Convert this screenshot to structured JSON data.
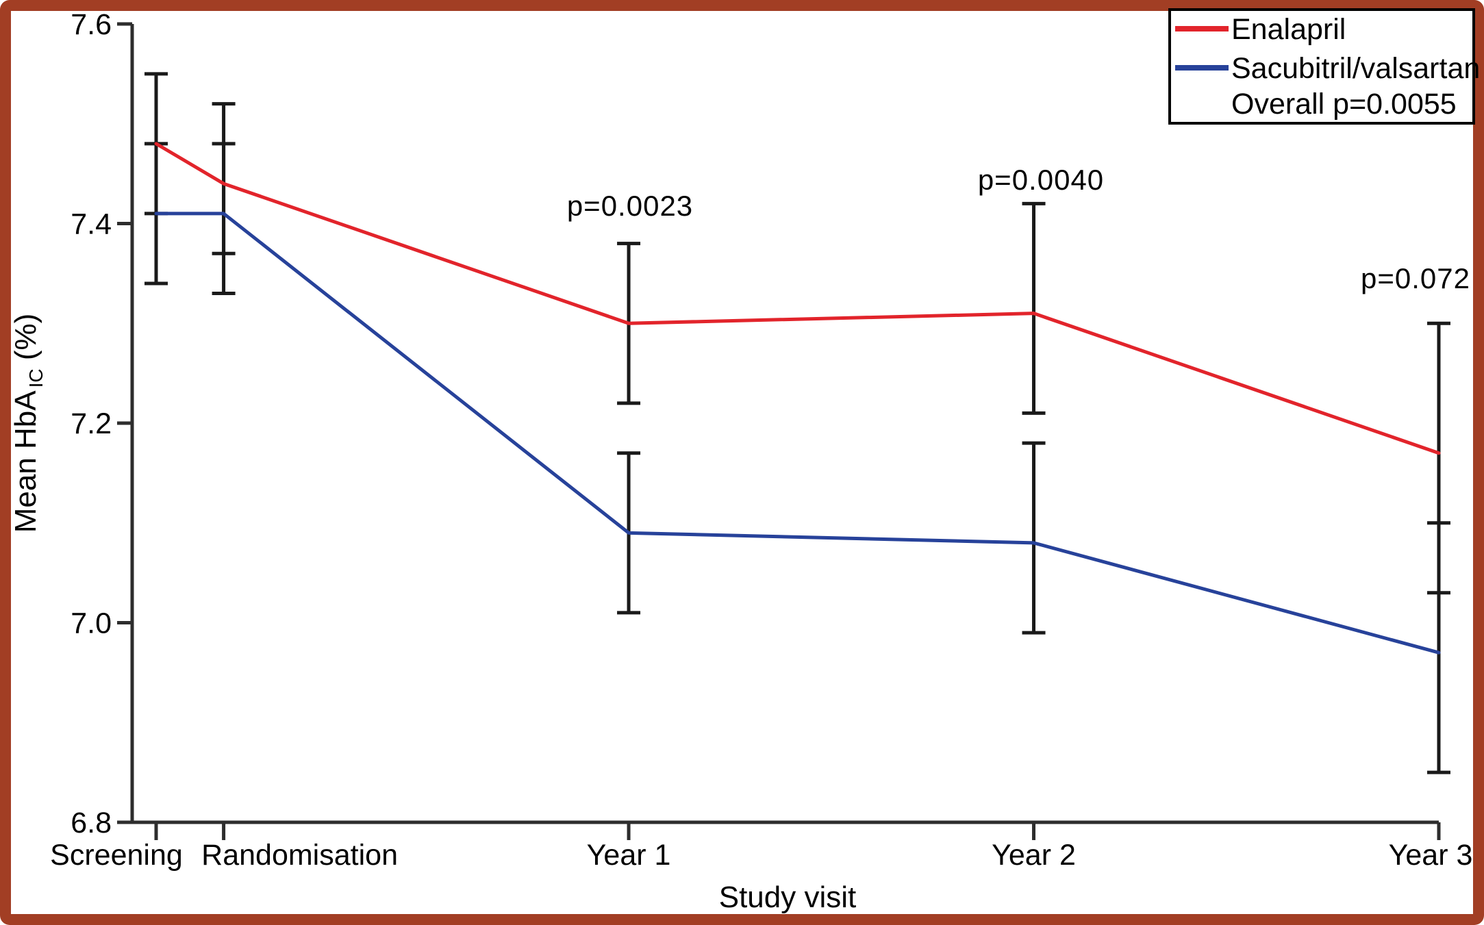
{
  "frame": {
    "color": "#a23e24",
    "background": "#ffffff"
  },
  "chart_data": {
    "type": "line",
    "title": "",
    "xlabel": "Study visit",
    "ylabel": {
      "main": "Mean HbA",
      "sub": "IC",
      "unit": " (%)"
    },
    "ylim": [
      6.8,
      7.6
    ],
    "grid": false,
    "yticks": [
      {
        "label": "7.6",
        "value": 7.6
      },
      {
        "label": "7.4",
        "value": 7.4
      },
      {
        "label": "7.2",
        "value": 7.2
      },
      {
        "label": "7.0",
        "value": 7.0
      },
      {
        "label": "6.8",
        "value": 6.8
      }
    ],
    "categories": [
      {
        "label": "Screening",
        "month": -2
      },
      {
        "label": "Randomisation",
        "month": 0
      },
      {
        "label": "Year 1",
        "month": 12
      },
      {
        "label": "Year 2",
        "month": 24
      },
      {
        "label": "Year 3",
        "month": 36
      }
    ],
    "series": [
      {
        "name": "Enalapril",
        "color": "#e2242b",
        "values": [
          7.48,
          7.44,
          7.3,
          7.31,
          7.17
        ],
        "ci_low": [
          7.41,
          7.37,
          7.22,
          7.21,
          7.03
        ],
        "ci_high": [
          7.55,
          7.52,
          7.38,
          7.42,
          7.3
        ]
      },
      {
        "name": "Sacubitril/valsartan",
        "color": "#27429a",
        "values": [
          7.41,
          7.41,
          7.09,
          7.08,
          6.97
        ],
        "ci_low": [
          7.34,
          7.33,
          7.01,
          6.99,
          6.85
        ],
        "ci_high": [
          7.48,
          7.48,
          7.17,
          7.18,
          7.1
        ]
      }
    ],
    "annotations": [
      {
        "text": "p=0.0023",
        "category": "Year 1"
      },
      {
        "text": "p=0.0040",
        "category": "Year 2"
      },
      {
        "text": "p=0.072",
        "category": "Year 3"
      }
    ],
    "legend": {
      "position": "top-right",
      "entries": [
        {
          "label": "Enalapril"
        },
        {
          "label": "Sacubitril/valsartan"
        }
      ],
      "note": "Overall p=0.0055"
    }
  }
}
